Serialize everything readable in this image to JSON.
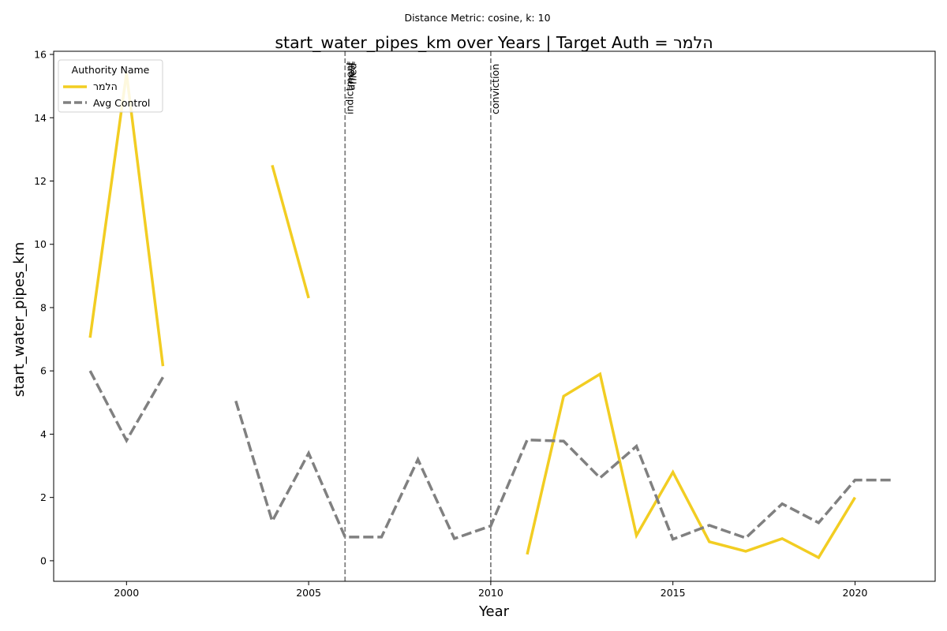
{
  "figure": {
    "suptitle": "Distance Metric: cosine, k: 10"
  },
  "chart_data": {
    "type": "line",
    "title": "start_water_pipes_km over Years | Target Auth = הלמר",
    "xlabel": "Year",
    "ylabel": "start_water_pipes_km",
    "xlim": [
      1998,
      2022.2
    ],
    "ylim": [
      -0.65,
      16.1
    ],
    "x_ticks": [
      2000,
      2005,
      2010,
      2015,
      2020
    ],
    "y_ticks": [
      0,
      2,
      4,
      6,
      8,
      10,
      12,
      14,
      16
    ],
    "grid": false,
    "legend": {
      "title": "Authority Name",
      "placement": "top-left"
    },
    "series": [
      {
        "name": "הלמר",
        "color": "#f2cd22",
        "style": "solid",
        "points": [
          [
            1999,
            7.05
          ],
          [
            2000,
            15.4
          ],
          [
            2001,
            6.15
          ],
          [
            2002,
            null
          ],
          [
            2003,
            null
          ],
          [
            2004,
            12.5
          ],
          [
            2005,
            8.3
          ],
          [
            2006,
            null
          ],
          [
            2007,
            null
          ],
          [
            2008,
            null
          ],
          [
            2009,
            null
          ],
          [
            2010,
            null
          ],
          [
            2011,
            0.2
          ],
          [
            2012,
            5.2
          ],
          [
            2013,
            5.9
          ],
          [
            2014,
            0.8
          ],
          [
            2015,
            2.8
          ],
          [
            2016,
            0.6
          ],
          [
            2017,
            0.3
          ],
          [
            2018,
            0.7
          ],
          [
            2019,
            0.1
          ],
          [
            2020,
            2.0
          ]
        ]
      },
      {
        "name": "Avg Control",
        "color": "#808080",
        "style": "dashed",
        "points": [
          [
            1999,
            6.0
          ],
          [
            2000,
            3.8
          ],
          [
            2001,
            5.8
          ],
          [
            2002,
            null
          ],
          [
            2003,
            5.05
          ],
          [
            2004,
            1.25
          ],
          [
            2005,
            3.4
          ],
          [
            2006,
            0.75
          ],
          [
            2007,
            0.75
          ],
          [
            2008,
            3.2
          ],
          [
            2009,
            0.7
          ],
          [
            2010,
            1.1
          ],
          [
            2011,
            3.82
          ],
          [
            2012,
            3.78
          ],
          [
            2013,
            2.62
          ],
          [
            2014,
            3.62
          ],
          [
            2015,
            0.68
          ],
          [
            2016,
            1.12
          ],
          [
            2017,
            0.72
          ],
          [
            2018,
            1.8
          ],
          [
            2019,
            1.2
          ],
          [
            2020,
            2.55
          ],
          [
            2021,
            2.55
          ]
        ]
      }
    ],
    "events": [
      {
        "x": 2006,
        "labels": [
          "indictment",
          "arrest",
          "filed"
        ]
      },
      {
        "x": 2010,
        "labels": [
          "conviction"
        ]
      }
    ]
  }
}
